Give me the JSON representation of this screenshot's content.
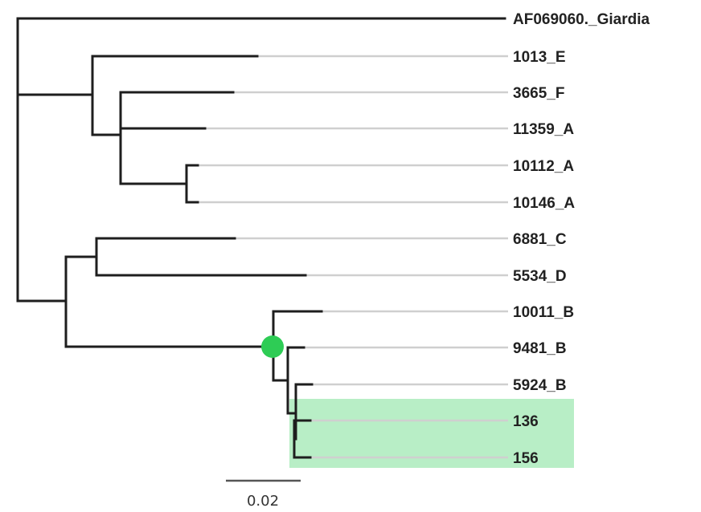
{
  "tree": {
    "leaves": [
      {
        "id": "giardia",
        "label": "AF069060._Giardia"
      },
      {
        "id": "1013_e",
        "label": "1013_E"
      },
      {
        "id": "3665_f",
        "label": "3665_F"
      },
      {
        "id": "11359_a",
        "label": "11359_A"
      },
      {
        "id": "10112_a",
        "label": "10112_A"
      },
      {
        "id": "10146_a",
        "label": "10146_A"
      },
      {
        "id": "6881_c",
        "label": "6881_C"
      },
      {
        "id": "5534_d",
        "label": "5534_D"
      },
      {
        "id": "10011_b",
        "label": "10011_B"
      },
      {
        "id": "9481_b",
        "label": "9481_B"
      },
      {
        "id": "5924_b",
        "label": "5924_B"
      },
      {
        "id": "136",
        "label": "136"
      },
      {
        "id": "156",
        "label": "156"
      }
    ],
    "scale_bar": {
      "label": "0.02"
    },
    "colors": {
      "branch": "#1e1e1e",
      "guide": "#cfcfcf",
      "highlight": "#b8eec6",
      "node_marker": "#2ecc55"
    }
  }
}
